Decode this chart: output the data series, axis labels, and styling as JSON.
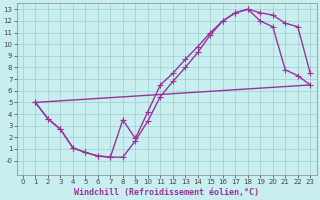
{
  "bg_color": "#c8eef0",
  "line_color": "#993399",
  "marker": "+",
  "markersize": 4,
  "linewidth": 1.0,
  "xlim": [
    -0.5,
    23.5
  ],
  "ylim": [
    -1.2,
    13.5
  ],
  "xticks": [
    0,
    1,
    2,
    3,
    4,
    5,
    6,
    7,
    8,
    9,
    10,
    11,
    12,
    13,
    14,
    15,
    16,
    17,
    18,
    19,
    20,
    21,
    22,
    23
  ],
  "yticks": [
    0,
    1,
    2,
    3,
    4,
    5,
    6,
    7,
    8,
    9,
    10,
    11,
    12,
    13
  ],
  "ytick_labels": [
    "-0",
    "1",
    "2",
    "3",
    "4",
    "5",
    "6",
    "7",
    "8",
    "9",
    "10",
    "11",
    "12",
    "13"
  ],
  "grid_color": "#9ecfcc",
  "tick_fontsize": 5.0,
  "xlabel": "Windchill (Refroidissement éolien,°C)",
  "xlabel_fontsize": 6.0,
  "line1_x": [
    1,
    2,
    3,
    4,
    5,
    6,
    7,
    8,
    9,
    10,
    11,
    12,
    13,
    14,
    15,
    16,
    17,
    18,
    19,
    20,
    21,
    22,
    23
  ],
  "line1_y": [
    5.0,
    3.6,
    2.7,
    1.1,
    0.7,
    0.4,
    0.3,
    0.3,
    1.7,
    3.4,
    5.5,
    6.8,
    8.0,
    9.3,
    10.8,
    12.0,
    12.7,
    13.0,
    12.7,
    12.5,
    11.8,
    11.5,
    7.5
  ],
  "line2_x": [
    1,
    2,
    3,
    4,
    5,
    6,
    7,
    8,
    9,
    10,
    11,
    12,
    13,
    14,
    15,
    16,
    17,
    18,
    19,
    20,
    21,
    22,
    23
  ],
  "line2_y": [
    5.0,
    3.6,
    2.7,
    1.1,
    0.7,
    0.4,
    0.3,
    3.5,
    1.9,
    4.2,
    6.5,
    7.5,
    8.7,
    9.8,
    11.0,
    12.0,
    12.7,
    13.0,
    12.0,
    11.5,
    7.8,
    7.3,
    6.5
  ],
  "line3_x": [
    1,
    23
  ],
  "line3_y": [
    5.0,
    6.5
  ]
}
